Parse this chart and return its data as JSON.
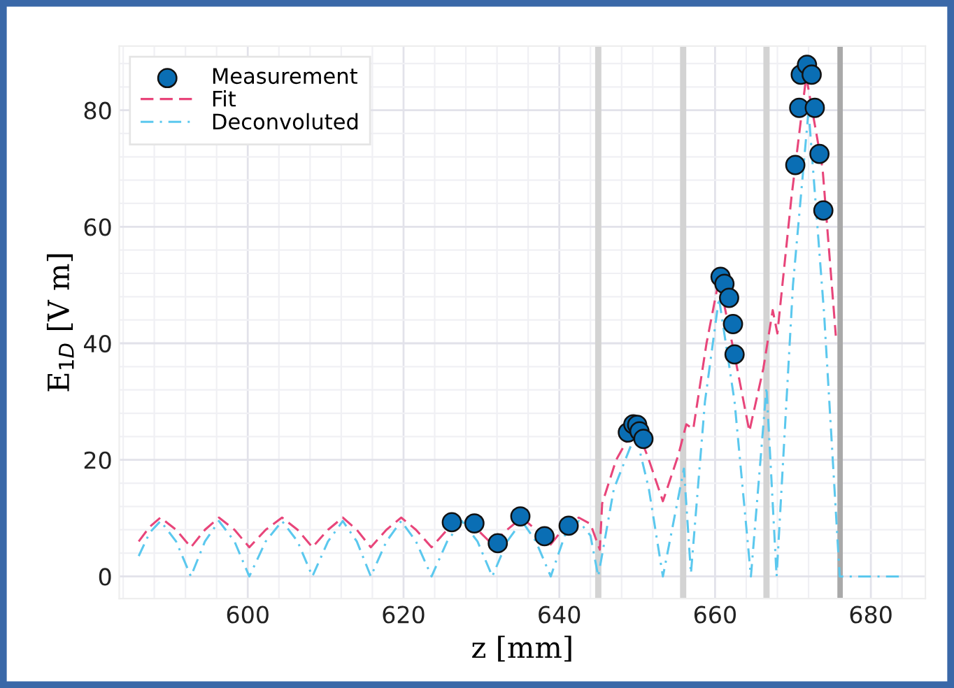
{
  "chart_data": {
    "type": "scatter",
    "xlabel": "z [mm]",
    "ylabel": "E$_{1D}$ [V m]",
    "xlim": [
      583.5,
      687
    ],
    "ylim": [
      -3.8,
      91
    ],
    "xticks": [
      600,
      620,
      640,
      660,
      680
    ],
    "yticks": [
      0,
      20,
      40,
      60,
      80
    ],
    "grid": true,
    "legend": "top left",
    "bands": [
      {
        "axis": "x",
        "from": 644.6,
        "to": 645.4,
        "color": "#d3d3d3"
      },
      {
        "axis": "x",
        "from": 655.5,
        "to": 656.3,
        "color": "#d3d3d3"
      },
      {
        "axis": "x",
        "from": 666.2,
        "to": 667.0,
        "color": "#d3d3d3"
      },
      {
        "axis": "x",
        "from": 675.7,
        "to": 676.4,
        "color": "#a9a9a9"
      }
    ],
    "series": [
      {
        "name": "Measurement",
        "marker": "circle",
        "color": "#0a6eb4",
        "x": [
          626.2,
          629.1,
          632.1,
          635.0,
          638.1,
          641.2,
          648.8,
          649.5,
          650.0,
          650.3,
          650.8,
          660.7,
          661.2,
          661.8,
          662.3,
          662.5,
          670.3,
          670.8,
          671.0,
          671.8,
          672.4,
          672.8,
          673.4,
          673.9
        ],
        "values": [
          9.3,
          9.1,
          5.7,
          10.3,
          6.9,
          8.7,
          24.7,
          26.1,
          26.0,
          24.9,
          23.6,
          51.4,
          50.2,
          47.8,
          43.3,
          38.1,
          70.6,
          80.4,
          86.1,
          87.8,
          86.1,
          80.4,
          72.5,
          62.8
        ]
      },
      {
        "name": "Fit",
        "type": "line",
        "line_style": "dashed",
        "marker": "none",
        "color": "#e8457a",
        "x": [
          586.0,
          587.4,
          588.8,
          590.8,
          592.7,
          594.5,
          596.3,
          598.3,
          600.2,
          602.3,
          604.4,
          606.4,
          608.3,
          610.3,
          612.2,
          614.0,
          615.8,
          617.8,
          619.7,
          621.6,
          623.6,
          625.6,
          627.5,
          629.5,
          631.4,
          633.3,
          635.2,
          637.0,
          638.9,
          640.7,
          642.5,
          644.0,
          645.2,
          645.5,
          647.3,
          649.8,
          651.5,
          653.3,
          655.3,
          656.3,
          657.2,
          658.9,
          660.5,
          662.5,
          664.4,
          666.2,
          667.4,
          668.0,
          669.8,
          671.7,
          673.8,
          675.5
        ],
        "values": [
          6.0,
          8.5,
          10.1,
          8.0,
          5.0,
          8.0,
          10.1,
          8.0,
          5.0,
          8.0,
          10.1,
          8.0,
          5.0,
          8.0,
          10.1,
          8.0,
          5.0,
          8.0,
          10.1,
          8.0,
          5.0,
          8.0,
          10.1,
          8.0,
          5.5,
          8.0,
          10.1,
          8.0,
          5.5,
          8.5,
          10.1,
          9.0,
          4.6,
          12.5,
          20.0,
          26.0,
          20.0,
          12.9,
          20.9,
          26.1,
          25.3,
          40.0,
          51.0,
          38.0,
          24.9,
          35.7,
          45.7,
          41.7,
          65.0,
          85.8,
          70.0,
          41.3
        ]
      },
      {
        "name": "Deconvoluted",
        "type": "line",
        "line_style": "dashdot",
        "marker": "none",
        "color": "#5bc8ee",
        "x": [
          586.0,
          587.4,
          588.8,
          590.8,
          592.7,
          594.5,
          596.3,
          598.3,
          600.2,
          602.3,
          604.4,
          606.4,
          608.3,
          610.3,
          612.2,
          614.0,
          615.8,
          617.8,
          619.7,
          621.6,
          623.6,
          625.6,
          627.5,
          629.5,
          631.4,
          633.3,
          635.2,
          637.0,
          638.9,
          640.7,
          642.5,
          644.0,
          645.0,
          647.0,
          649.8,
          651.5,
          653.3,
          656.0,
          656.9,
          658.7,
          660.5,
          662.5,
          664.6,
          666.6,
          667.9,
          670.0,
          672.0,
          674.0,
          676.0,
          684.0
        ],
        "values": [
          3.5,
          7.5,
          9.5,
          6.0,
          0.0,
          6.0,
          9.5,
          6.0,
          0.0,
          6.0,
          9.5,
          6.0,
          0.0,
          6.0,
          9.5,
          6.0,
          0.0,
          6.0,
          9.5,
          6.0,
          0.0,
          6.0,
          9.5,
          6.0,
          0.0,
          6.0,
          9.5,
          6.0,
          0.0,
          7.0,
          9.5,
          7.0,
          0.0,
          15.0,
          24.5,
          15.0,
          0.0,
          18.5,
          0.5,
          30.0,
          47.8,
          30.0,
          0.0,
          32.5,
          0.0,
          50.0,
          80.0,
          45.0,
          0.0,
          0.0
        ]
      }
    ]
  }
}
